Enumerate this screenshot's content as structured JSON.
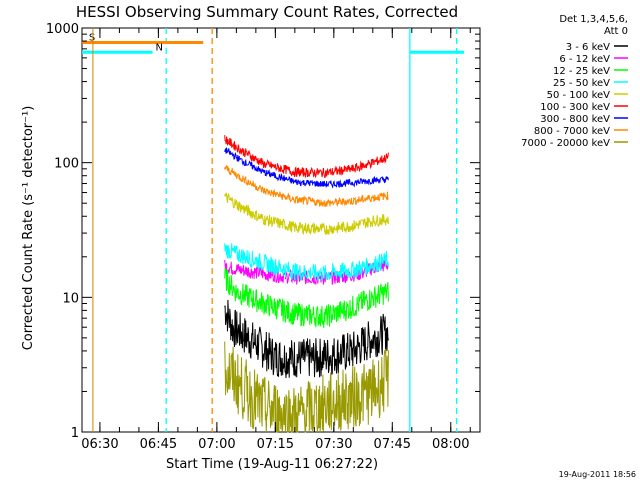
{
  "chart_data": {
    "type": "line",
    "title": "HESSI Observing Summary Count Rates, Corrected",
    "xlabel": "Start Time (19-Aug-11 06:27:22)",
    "ylabel": "Corrected Count Rate (s⁻¹ detector⁻¹)",
    "x_range_min": [
      -4.6,
      67.5
    ],
    "y_range": [
      1,
      1000
    ],
    "yscale": "log",
    "x_ticks": [
      {
        "label": "06:30",
        "min": 0
      },
      {
        "label": "06:45",
        "min": 15
      },
      {
        "label": "07:00",
        "min": 30
      },
      {
        "label": "07:15",
        "min": 45
      },
      {
        "label": "07:30",
        "min": 60
      },
      {
        "label": "07:45",
        "min": 75
      },
      {
        "label": "08:00",
        "min": 90
      }
    ],
    "y_ticks": [
      {
        "label": "1",
        "v": 1
      },
      {
        "label": "10",
        "v": 10
      },
      {
        "label": "100",
        "v": 100
      },
      {
        "label": "1000",
        "v": 1000
      }
    ],
    "legend_header": [
      "Det 1,3,4,5,6,",
      "Att 0"
    ],
    "series": [
      {
        "name": "3 - 6 keV",
        "color": "#000000",
        "points": [
          [
            32,
            8.5
          ],
          [
            34,
            6
          ],
          [
            38,
            5
          ],
          [
            45,
            3.6
          ],
          [
            55,
            3.5
          ],
          [
            65,
            4
          ],
          [
            70,
            5
          ],
          [
            74,
            5.5
          ]
        ]
      },
      {
        "name": "6 - 12 keV",
        "color": "#ff00ff",
        "points": [
          [
            32,
            17
          ],
          [
            36,
            16
          ],
          [
            42,
            15
          ],
          [
            50,
            14
          ],
          [
            60,
            14
          ],
          [
            67,
            15
          ],
          [
            70,
            16.5
          ],
          [
            74,
            17.5
          ]
        ]
      },
      {
        "name": "12 - 25 keV",
        "color": "#00ff00",
        "points": [
          [
            32,
            14
          ],
          [
            35,
            11
          ],
          [
            42,
            9
          ],
          [
            50,
            7.5
          ],
          [
            58,
            7.2
          ],
          [
            65,
            8.5
          ],
          [
            70,
            10
          ],
          [
            74,
            11
          ]
        ]
      },
      {
        "name": "25 - 50 keV",
        "color": "#00ffff",
        "points": [
          [
            32,
            23
          ],
          [
            35,
            21
          ],
          [
            42,
            18
          ],
          [
            50,
            15.5
          ],
          [
            58,
            15
          ],
          [
            65,
            16
          ],
          [
            70,
            17.5
          ],
          [
            74,
            19
          ]
        ]
      },
      {
        "name": "50 - 100 keV",
        "color": "#cccc00",
        "points": [
          [
            32,
            56
          ],
          [
            36,
            47
          ],
          [
            42,
            38
          ],
          [
            50,
            33
          ],
          [
            58,
            32
          ],
          [
            65,
            34
          ],
          [
            70,
            37
          ],
          [
            74,
            38
          ]
        ]
      },
      {
        "name": "100 - 300 keV",
        "color": "#ff0000",
        "points": [
          [
            32,
            150
          ],
          [
            36,
            125
          ],
          [
            42,
            98
          ],
          [
            50,
            85
          ],
          [
            58,
            84
          ],
          [
            65,
            90
          ],
          [
            70,
            100
          ],
          [
            74,
            110
          ]
        ]
      },
      {
        "name": "300 - 800 keV",
        "color": "#0000ff",
        "points": [
          [
            32,
            125
          ],
          [
            36,
            105
          ],
          [
            42,
            85
          ],
          [
            50,
            72
          ],
          [
            58,
            69
          ],
          [
            65,
            71
          ],
          [
            70,
            74
          ],
          [
            74,
            75
          ]
        ]
      },
      {
        "name": "800 - 7000 keV",
        "color": "#ff8800",
        "points": [
          [
            32,
            92
          ],
          [
            36,
            78
          ],
          [
            42,
            62
          ],
          [
            50,
            53
          ],
          [
            58,
            50
          ],
          [
            65,
            52
          ],
          [
            70,
            55
          ],
          [
            74,
            57
          ]
        ]
      },
      {
        "name": "7000 - 20000 keV",
        "color": "#999900",
        "points": [
          [
            32,
            3
          ],
          [
            36,
            2.2
          ],
          [
            42,
            1.5
          ],
          [
            50,
            1.3
          ],
          [
            58,
            1.6
          ],
          [
            65,
            1.8
          ],
          [
            70,
            2
          ],
          [
            74,
            2.5
          ]
        ]
      }
    ],
    "flags": [
      {
        "label": "S",
        "color": "#ff8800",
        "x_start": -4.6,
        "x_end": 26.5,
        "level": 780
      },
      {
        "label": "N",
        "color": "#00ffff",
        "x_start": -4.6,
        "x_end": 13.5,
        "level": 660
      },
      {
        "label": "",
        "color": "#00ffff",
        "x_start": 68.5,
        "x_end": 67.5,
        "level": 660
      }
    ],
    "vlines": [
      {
        "x": 17.0,
        "color": "#00ffff",
        "style": "dashed"
      },
      {
        "x": 28.8,
        "color": "#ff8800",
        "style": "dashed"
      },
      {
        "x": 79.5,
        "color": "#00ffff",
        "style": "solid"
      },
      {
        "x": 91.5,
        "color": "#00ffff",
        "style": "dashed"
      }
    ],
    "timestamp": "19-Aug-2011 18:56"
  }
}
